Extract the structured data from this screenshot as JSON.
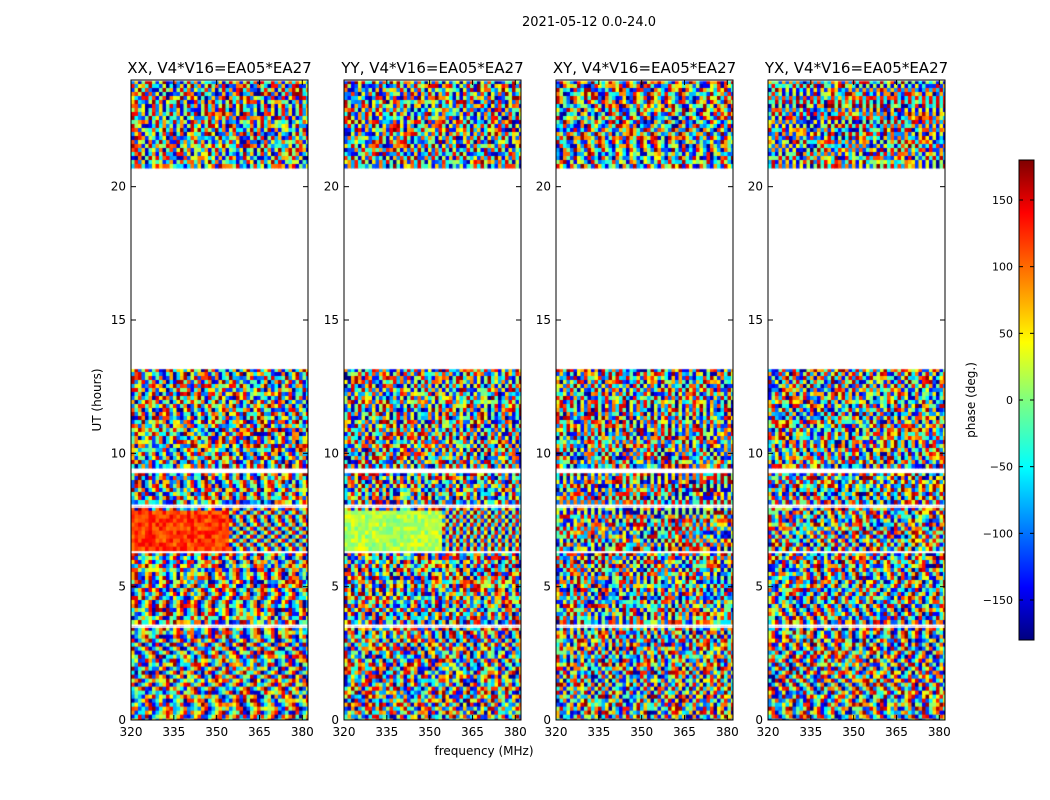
{
  "figure": {
    "suptitle": "2021-05-12 0.0-24.0",
    "ylabel": "UT (hours)",
    "xlabel": "frequency (MHz)"
  },
  "chart_data": {
    "type": "heatmap",
    "x_range": [
      320,
      382
    ],
    "y_range": [
      0,
      24
    ],
    "x_ticks": [
      320,
      335,
      350,
      365,
      380
    ],
    "y_ticks": [
      0,
      5,
      10,
      15,
      20
    ],
    "panels": [
      {
        "title": "XX, V4*V16=EA05*EA27"
      },
      {
        "title": "YY, V4*V16=EA05*EA27"
      },
      {
        "title": "XY, V4*V16=EA05*EA27"
      },
      {
        "title": "YX, V4*V16=EA05*EA27"
      }
    ],
    "data_bands_ut": [
      [
        0,
        3.5
      ],
      [
        3.65,
        6.3
      ],
      [
        6.4,
        8.0
      ],
      [
        8.2,
        9.3
      ],
      [
        9.5,
        13.2
      ],
      [
        20.8,
        24.0
      ]
    ],
    "gaps_ut": [
      [
        3.5,
        3.65
      ],
      [
        8.0,
        8.2
      ],
      [
        9.3,
        9.5
      ],
      [
        13.2,
        20.8
      ]
    ],
    "colorbar": {
      "label": "phase (deg.)",
      "range": [
        -180,
        180
      ],
      "ticks": [
        -150,
        -100,
        -50,
        0,
        50,
        100,
        150
      ],
      "colormap": "jet"
    }
  }
}
